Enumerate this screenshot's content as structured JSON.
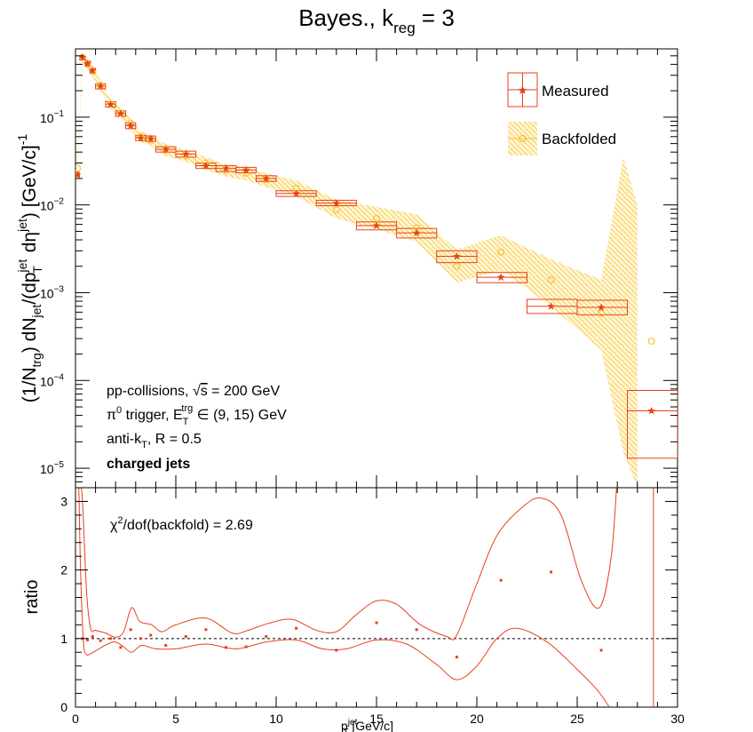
{
  "chart_data": [
    {
      "type": "scatter",
      "panel": "spectrum",
      "title": "Bayes., k_reg = 3",
      "title_parts": {
        "main": "Bayes., k",
        "sub": "reg",
        "rest": " = 3"
      },
      "ylabel": "(1/N_trg) dN_jet/(dp_T^jet dη^jet) [GeV/c]^-1",
      "ylabel_parts": {
        "p1": "(1/N",
        "s1": "trg",
        "p2": ") dN",
        "s2": "jet",
        "p3": "/(dp",
        "sup3": "jet",
        "sub3": "T",
        "p4": " dη",
        "sup4": "jet",
        "p5": ") [GeV/c]",
        "sup5": "-1"
      },
      "xlim": [
        0,
        30
      ],
      "ylim": [
        6e-06,
        0.6
      ],
      "yscale": "log",
      "yticks": [
        1e-05,
        0.0001,
        0.001,
        0.01,
        0.1
      ],
      "ytick_labels": [
        {
          "base": "10",
          "exp": "−5"
        },
        {
          "base": "10",
          "exp": "−4"
        },
        {
          "base": "10",
          "exp": "−3"
        },
        {
          "base": "10",
          "exp": "−2"
        },
        {
          "base": "10",
          "exp": "−1"
        }
      ],
      "legend_position": "top-right",
      "legend": [
        {
          "label": "Measured",
          "color": "#e8401a"
        },
        {
          "label": "Backfolded",
          "color": "#f5c431"
        }
      ],
      "annotations": [
        {
          "text": "pp-collisions, √s = 200 GeV",
          "parts": {
            "a": "pp-collisions, ",
            "root": "√",
            "b": "s",
            "c": " = 200 GeV"
          }
        },
        {
          "text": "π⁰ trigger, E_T^trg ∈ (9, 15) GeV",
          "parts": {
            "a": "π",
            "sup0": "0",
            "b": " trigger, E",
            "sub": "T",
            "sup": "trg",
            "c": " ∈ (9, 15) GeV"
          }
        },
        {
          "text": "anti-k_T, R = 0.5",
          "parts": {
            "a": "anti-k",
            "sub": "T",
            "b": ", R = 0.5"
          }
        },
        {
          "text": "charged jets",
          "bold": true
        }
      ],
      "series": [
        {
          "name": "Measured",
          "color": "#e8401a",
          "points": [
            {
              "x": 0.1,
              "y": 0.022,
              "xlo": 0.0,
              "xhi": 0.2,
              "ylo": 0.021,
              "yhi": 0.0235
            },
            {
              "x": 0.35,
              "y": 0.48,
              "xlo": 0.2,
              "xhi": 0.5,
              "ylo": 0.45,
              "yhi": 0.5
            },
            {
              "x": 0.6,
              "y": 0.41,
              "xlo": 0.5,
              "xhi": 0.75,
              "ylo": 0.385,
              "yhi": 0.435
            },
            {
              "x": 0.85,
              "y": 0.34,
              "xlo": 0.75,
              "xhi": 1.0,
              "ylo": 0.32,
              "yhi": 0.36
            },
            {
              "x": 1.25,
              "y": 0.225,
              "xlo": 1.0,
              "xhi": 1.5,
              "ylo": 0.21,
              "yhi": 0.24
            },
            {
              "x": 1.75,
              "y": 0.14,
              "xlo": 1.5,
              "xhi": 2.0,
              "ylo": 0.13,
              "yhi": 0.15
            },
            {
              "x": 2.25,
              "y": 0.11,
              "xlo": 2.0,
              "xhi": 2.5,
              "ylo": 0.102,
              "yhi": 0.118
            },
            {
              "x": 2.75,
              "y": 0.08,
              "xlo": 2.5,
              "xhi": 3.0,
              "ylo": 0.074,
              "yhi": 0.086
            },
            {
              "x": 3.25,
              "y": 0.058,
              "xlo": 3.0,
              "xhi": 3.5,
              "ylo": 0.054,
              "yhi": 0.062
            },
            {
              "x": 3.75,
              "y": 0.057,
              "xlo": 3.5,
              "xhi": 4.0,
              "ylo": 0.053,
              "yhi": 0.061
            },
            {
              "x": 4.5,
              "y": 0.043,
              "xlo": 4.0,
              "xhi": 5.0,
              "ylo": 0.04,
              "yhi": 0.046
            },
            {
              "x": 5.5,
              "y": 0.038,
              "xlo": 5.0,
              "xhi": 6.0,
              "ylo": 0.035,
              "yhi": 0.041
            },
            {
              "x": 6.5,
              "y": 0.028,
              "xlo": 6.0,
              "xhi": 7.0,
              "ylo": 0.026,
              "yhi": 0.03
            },
            {
              "x": 7.5,
              "y": 0.026,
              "xlo": 7.0,
              "xhi": 8.0,
              "ylo": 0.024,
              "yhi": 0.028
            },
            {
              "x": 8.5,
              "y": 0.025,
              "xlo": 8.0,
              "xhi": 9.0,
              "ylo": 0.0232,
              "yhi": 0.0268
            },
            {
              "x": 9.5,
              "y": 0.02,
              "xlo": 9.0,
              "xhi": 10.0,
              "ylo": 0.0185,
              "yhi": 0.0215
            },
            {
              "x": 11.0,
              "y": 0.0135,
              "xlo": 10.0,
              "xhi": 12.0,
              "ylo": 0.0125,
              "yhi": 0.0145
            },
            {
              "x": 13.0,
              "y": 0.0105,
              "xlo": 12.0,
              "xhi": 14.0,
              "ylo": 0.0098,
              "yhi": 0.0113
            },
            {
              "x": 15.0,
              "y": 0.0058,
              "xlo": 14.0,
              "xhi": 16.0,
              "ylo": 0.0052,
              "yhi": 0.0064
            },
            {
              "x": 17.0,
              "y": 0.0048,
              "xlo": 16.0,
              "xhi": 18.0,
              "ylo": 0.0042,
              "yhi": 0.0054
            },
            {
              "x": 19.0,
              "y": 0.0026,
              "xlo": 18.0,
              "xhi": 20.0,
              "ylo": 0.0022,
              "yhi": 0.003
            },
            {
              "x": 21.2,
              "y": 0.0015,
              "xlo": 20.0,
              "xhi": 22.5,
              "ylo": 0.0013,
              "yhi": 0.0017
            },
            {
              "x": 23.7,
              "y": 0.0007,
              "xlo": 22.5,
              "xhi": 25.0,
              "ylo": 0.00058,
              "yhi": 0.00084
            },
            {
              "x": 26.2,
              "y": 0.00068,
              "xlo": 25.0,
              "xhi": 27.5,
              "ylo": 0.00056,
              "yhi": 0.00082
            },
            {
              "x": 28.7,
              "y": 4.5e-05,
              "xlo": 27.5,
              "xhi": 30.0,
              "ylo": 1.3e-05,
              "yhi": 7.7e-05
            }
          ]
        },
        {
          "name": "Backfolded",
          "color": "#f5c431",
          "points": [
            {
              "x": 0.1,
              "y": 0.026
            },
            {
              "x": 0.35,
              "y": 0.48
            },
            {
              "x": 0.6,
              "y": 0.4
            },
            {
              "x": 0.85,
              "y": 0.33
            },
            {
              "x": 1.25,
              "y": 0.23
            },
            {
              "x": 1.75,
              "y": 0.14
            },
            {
              "x": 2.25,
              "y": 0.11
            },
            {
              "x": 2.75,
              "y": 0.085
            },
            {
              "x": 3.25,
              "y": 0.06
            },
            {
              "x": 3.75,
              "y": 0.055
            },
            {
              "x": 4.5,
              "y": 0.042
            },
            {
              "x": 5.5,
              "y": 0.036
            },
            {
              "x": 6.5,
              "y": 0.03
            },
            {
              "x": 7.5,
              "y": 0.025
            },
            {
              "x": 8.5,
              "y": 0.023
            },
            {
              "x": 9.5,
              "y": 0.0195
            },
            {
              "x": 11.0,
              "y": 0.0155
            },
            {
              "x": 13.0,
              "y": 0.0088
            },
            {
              "x": 15.0,
              "y": 0.007
            },
            {
              "x": 17.0,
              "y": 0.0055
            },
            {
              "x": 19.0,
              "y": 0.002
            },
            {
              "x": 21.2,
              "y": 0.0029
            },
            {
              "x": 23.7,
              "y": 0.0014
            },
            {
              "x": 26.2,
              "y": 0.00058
            },
            {
              "x": 28.7,
              "y": 0.00028
            }
          ],
          "band": [
            {
              "x": 0.1,
              "lo": 0.02,
              "hi": 0.032
            },
            {
              "x": 0.35,
              "lo": 0.42,
              "hi": 0.55
            },
            {
              "x": 0.6,
              "lo": 0.35,
              "hi": 0.46
            },
            {
              "x": 0.85,
              "lo": 0.29,
              "hi": 0.38
            },
            {
              "x": 1.25,
              "lo": 0.2,
              "hi": 0.265
            },
            {
              "x": 1.75,
              "lo": 0.122,
              "hi": 0.16
            },
            {
              "x": 2.25,
              "lo": 0.095,
              "hi": 0.127
            },
            {
              "x": 2.75,
              "lo": 0.072,
              "hi": 0.098
            },
            {
              "x": 3.25,
              "lo": 0.052,
              "hi": 0.069
            },
            {
              "x": 3.75,
              "lo": 0.047,
              "hi": 0.063
            },
            {
              "x": 4.5,
              "lo": 0.036,
              "hi": 0.049
            },
            {
              "x": 5.5,
              "lo": 0.031,
              "hi": 0.042
            },
            {
              "x": 6.5,
              "lo": 0.025,
              "hi": 0.035
            },
            {
              "x": 7.5,
              "lo": 0.021,
              "hi": 0.029
            },
            {
              "x": 8.5,
              "lo": 0.019,
              "hi": 0.027
            },
            {
              "x": 9.5,
              "lo": 0.016,
              "hi": 0.023
            },
            {
              "x": 11.0,
              "lo": 0.0125,
              "hi": 0.019
            },
            {
              "x": 13.0,
              "lo": 0.007,
              "hi": 0.0115
            },
            {
              "x": 15.0,
              "lo": 0.0053,
              "hi": 0.0095
            },
            {
              "x": 17.0,
              "lo": 0.0038,
              "hi": 0.0078
            },
            {
              "x": 19.0,
              "lo": 0.0013,
              "hi": 0.0031
            },
            {
              "x": 21.2,
              "lo": 0.0018,
              "hi": 0.0045
            },
            {
              "x": 23.7,
              "lo": 0.0007,
              "hi": 0.0024
            },
            {
              "x": 26.2,
              "lo": 0.00022,
              "hi": 0.0014
            },
            {
              "x": 27.3,
              "lo": 1.5e-05,
              "hi": 0.035
            },
            {
              "x": 28.0,
              "lo": 6e-06,
              "hi": 0.01
            }
          ]
        }
      ]
    },
    {
      "type": "scatter",
      "panel": "ratio",
      "xlabel": "p_T^jet [GeV/c]",
      "xlabel_parts": {
        "a": "p",
        "sup": "jet",
        "sub": "T",
        "b": " [GeV/c]"
      },
      "ylabel": "ratio",
      "xlim": [
        0,
        30
      ],
      "ylim": [
        0,
        3.2
      ],
      "xticks": [
        0,
        5,
        10,
        15,
        20,
        25,
        30
      ],
      "yticks": [
        0,
        1,
        2,
        3
      ],
      "reference_line": 1,
      "annotation": {
        "text": "χ²/dof(backfold) = 2.69",
        "parts": {
          "a": "χ",
          "sup": "2",
          "b": "/dof(backfold) = 2.69"
        }
      },
      "series": [
        {
          "name": "",
          "color": "#e8401a",
          "x": [
            0.35,
            0.6,
            0.85,
            1.25,
            1.75,
            2.25,
            2.75,
            3.25,
            3.75,
            4.5,
            5.5,
            6.5,
            7.5,
            8.5,
            9.5,
            11.0,
            13.0,
            15.0,
            17.0,
            19.0,
            21.2,
            23.7,
            26.2
          ],
          "y": [
            1.0,
            0.98,
            1.03,
            0.97,
            1.0,
            0.87,
            1.13,
            1.0,
            1.05,
            0.9,
            1.03,
            1.13,
            0.87,
            0.88,
            1.03,
            1.15,
            0.83,
            1.23,
            1.13,
            0.73,
            1.85,
            1.97,
            0.83
          ]
        }
      ],
      "band_lines": {
        "upper": [
          {
            "x": 0.0,
            "y": 3.2
          },
          {
            "x": 0.2,
            "y": 3.3
          },
          {
            "x": 0.35,
            "y": 3.0
          },
          {
            "x": 0.55,
            "y": 1.7
          },
          {
            "x": 0.75,
            "y": 1.15
          },
          {
            "x": 1.0,
            "y": 1.12
          },
          {
            "x": 1.5,
            "y": 1.08
          },
          {
            "x": 2.0,
            "y": 1.02
          },
          {
            "x": 2.4,
            "y": 1.1
          },
          {
            "x": 2.8,
            "y": 1.45
          },
          {
            "x": 3.2,
            "y": 1.25
          },
          {
            "x": 3.8,
            "y": 1.2
          },
          {
            "x": 4.3,
            "y": 1.1
          },
          {
            "x": 5.0,
            "y": 1.2
          },
          {
            "x": 6.5,
            "y": 1.3
          },
          {
            "x": 7.8,
            "y": 1.08
          },
          {
            "x": 8.6,
            "y": 1.12
          },
          {
            "x": 9.6,
            "y": 1.22
          },
          {
            "x": 10.8,
            "y": 1.28
          },
          {
            "x": 12.0,
            "y": 1.12
          },
          {
            "x": 13.0,
            "y": 1.1
          },
          {
            "x": 14.0,
            "y": 1.35
          },
          {
            "x": 15.0,
            "y": 1.55
          },
          {
            "x": 16.0,
            "y": 1.5
          },
          {
            "x": 17.2,
            "y": 1.2
          },
          {
            "x": 18.5,
            "y": 1.03
          },
          {
            "x": 19.0,
            "y": 1.05
          },
          {
            "x": 20.0,
            "y": 1.8
          },
          {
            "x": 21.0,
            "y": 2.5
          },
          {
            "x": 22.2,
            "y": 2.9
          },
          {
            "x": 23.2,
            "y": 3.05
          },
          {
            "x": 24.2,
            "y": 2.8
          },
          {
            "x": 25.2,
            "y": 1.85
          },
          {
            "x": 26.1,
            "y": 1.45
          },
          {
            "x": 26.7,
            "y": 2.2
          },
          {
            "x": 27.0,
            "y": 3.4
          }
        ],
        "lower": [
          {
            "x": 0.0,
            "y": 3.2
          },
          {
            "x": 0.15,
            "y": 3.3
          },
          {
            "x": 0.25,
            "y": 2.0
          },
          {
            "x": 0.4,
            "y": 0.95
          },
          {
            "x": 0.55,
            "y": 0.77
          },
          {
            "x": 0.75,
            "y": 0.78
          },
          {
            "x": 1.0,
            "y": 0.82
          },
          {
            "x": 1.6,
            "y": 0.92
          },
          {
            "x": 2.0,
            "y": 0.95
          },
          {
            "x": 2.4,
            "y": 0.88
          },
          {
            "x": 2.8,
            "y": 0.8
          },
          {
            "x": 3.3,
            "y": 0.9
          },
          {
            "x": 4.0,
            "y": 0.85
          },
          {
            "x": 5.0,
            "y": 0.85
          },
          {
            "x": 6.5,
            "y": 0.92
          },
          {
            "x": 8.0,
            "y": 0.85
          },
          {
            "x": 9.5,
            "y": 0.95
          },
          {
            "x": 11.0,
            "y": 0.98
          },
          {
            "x": 12.3,
            "y": 0.85
          },
          {
            "x": 13.5,
            "y": 0.85
          },
          {
            "x": 15.0,
            "y": 0.98
          },
          {
            "x": 16.5,
            "y": 0.92
          },
          {
            "x": 18.0,
            "y": 0.62
          },
          {
            "x": 19.0,
            "y": 0.4
          },
          {
            "x": 20.0,
            "y": 0.6
          },
          {
            "x": 21.0,
            "y": 1.0
          },
          {
            "x": 22.0,
            "y": 1.15
          },
          {
            "x": 23.5,
            "y": 0.95
          },
          {
            "x": 25.0,
            "y": 0.55
          },
          {
            "x": 26.0,
            "y": 0.25
          },
          {
            "x": 26.6,
            "y": 0.0
          }
        ],
        "right_edge": [
          {
            "x": 28.8,
            "y": 3.2
          },
          {
            "x": 28.8,
            "y": 0.0
          }
        ]
      }
    }
  ]
}
